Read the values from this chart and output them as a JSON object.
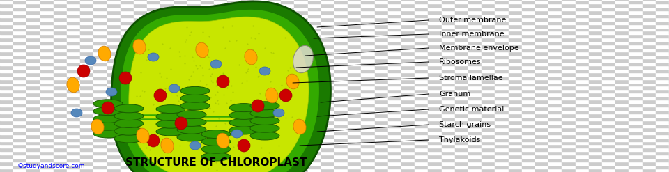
{
  "title": "STRUCTURE OF CHLOROPLAST",
  "title_fontsize": 11,
  "copyright": "©studyandscore.com",
  "copyright_fontsize": 6.5,
  "labels": [
    "Outer membrane",
    "Inner membrane",
    "Membrane envelope",
    "Ribosomes",
    "Stroma lamellae",
    "Granum",
    "Genetic material",
    "Starch grains",
    "Thylakoids"
  ],
  "outer_color": "#1a7a00",
  "outer_edge": "#0d5000",
  "inner_color": "#33aa00",
  "inner_edge": "#1a7a00",
  "stroma_color": "#c8e600",
  "granum_color": "#2e9900",
  "granum_edge": "#1a5c00",
  "lamella_color": "#33aa00",
  "red_dot_color": "#cc0000",
  "blue_dot_color": "#5588bb",
  "orange_dot_color": "#ffaa00",
  "orange_edge_color": "#cc7700",
  "envelope_fill": "#d8d8c8",
  "envelope_edge": "#888877",
  "label_fontsize": 8.0,
  "line_color": "#000000"
}
